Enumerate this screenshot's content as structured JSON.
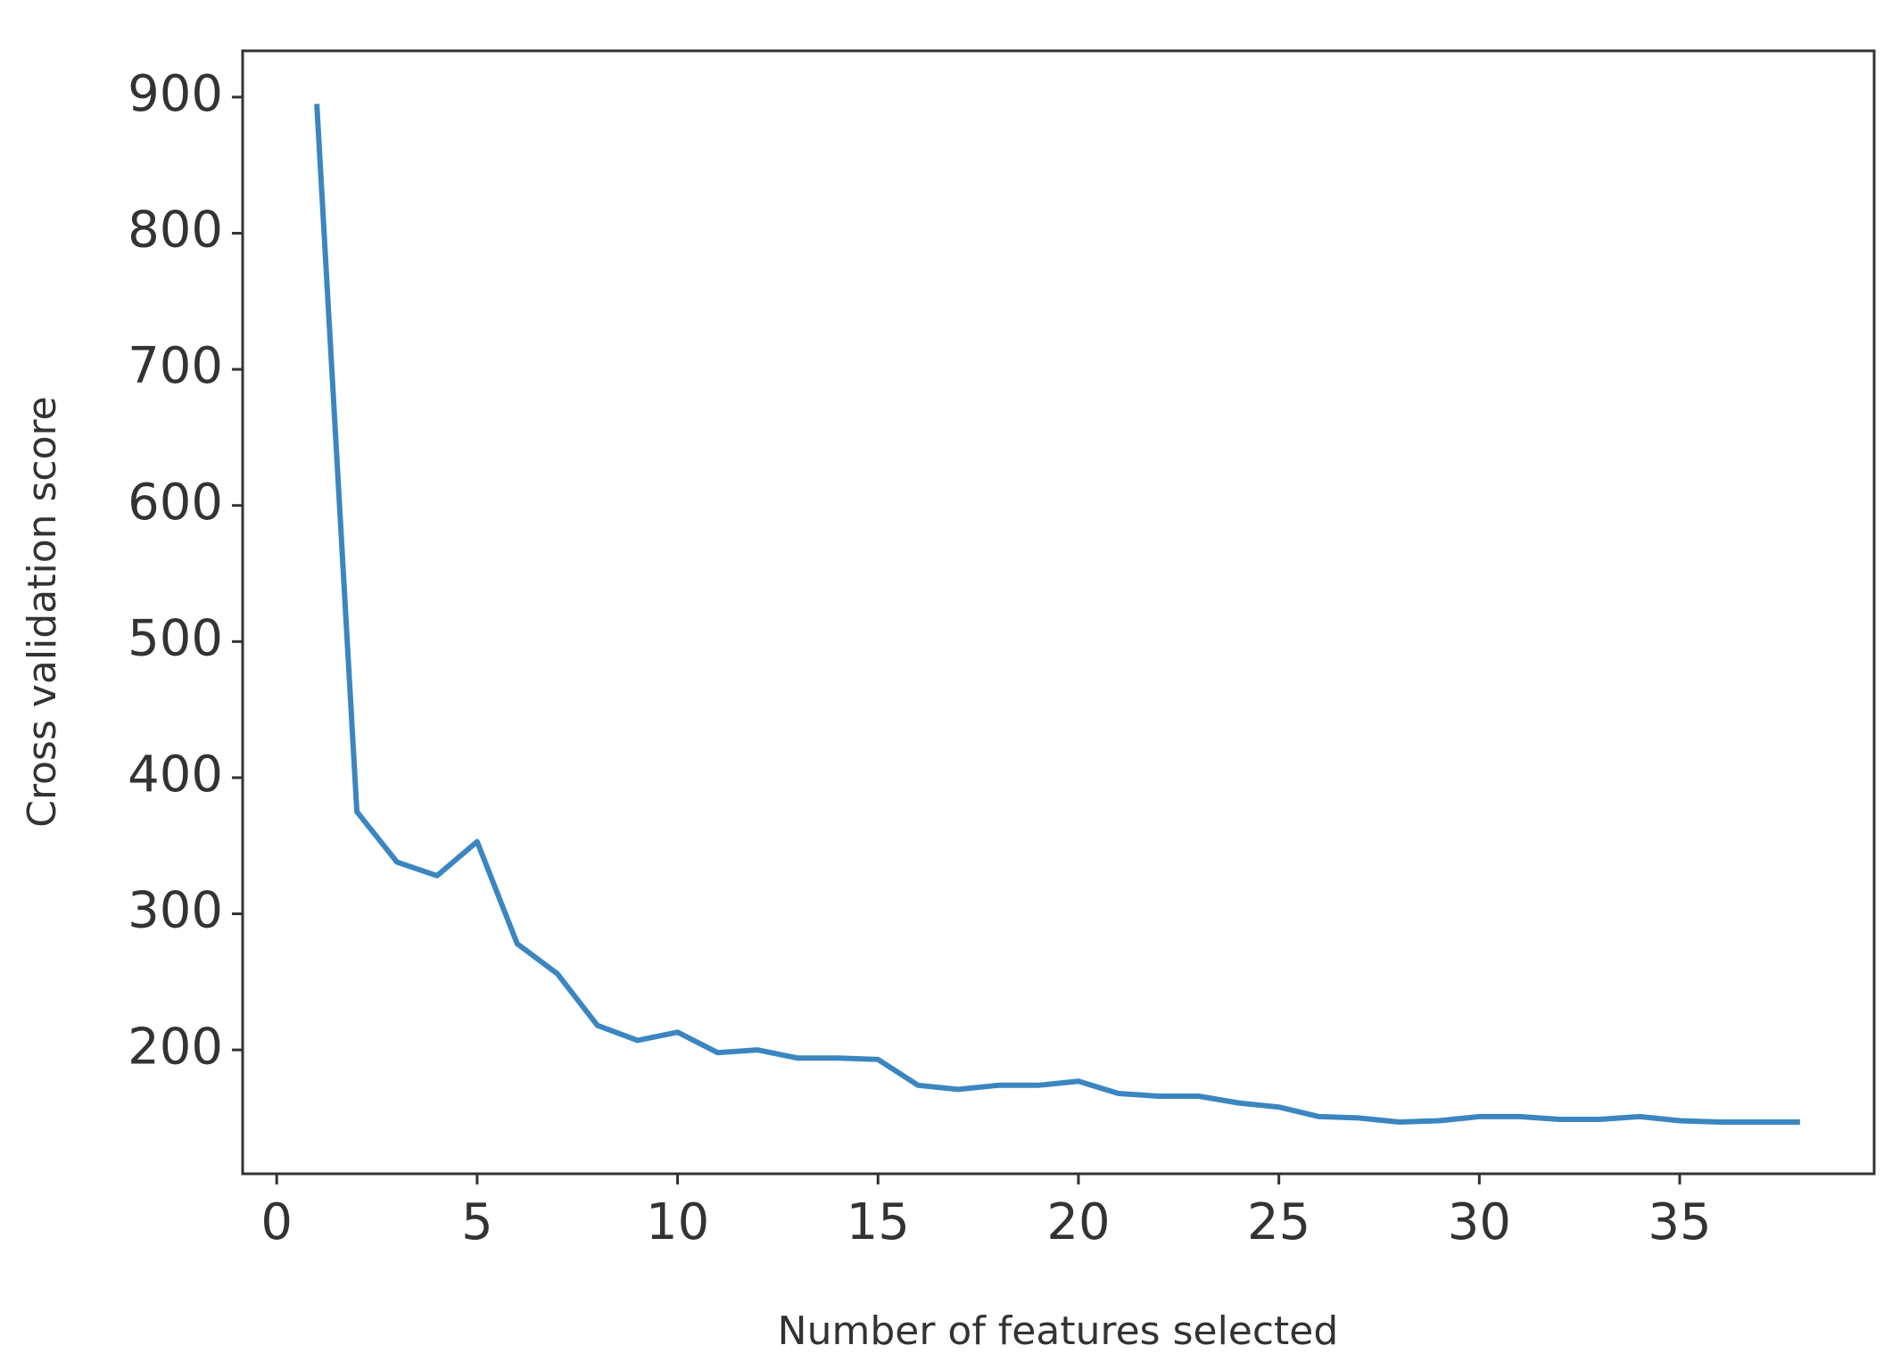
{
  "chart_data": {
    "type": "line",
    "xlabel": "Number of features selected",
    "ylabel": "Cross validation score",
    "x": [
      1,
      2,
      3,
      4,
      5,
      6,
      7,
      8,
      9,
      10,
      11,
      12,
      13,
      14,
      15,
      16,
      17,
      18,
      19,
      20,
      21,
      22,
      23,
      24,
      25,
      26,
      27,
      28,
      29,
      30,
      31,
      32,
      33,
      34,
      35,
      36,
      37,
      38
    ],
    "series": [
      {
        "color": "#3b86c0",
        "values": [
          895,
          375,
          338,
          328,
          353,
          278,
          256,
          218,
          207,
          213,
          198,
          200,
          194,
          194,
          193,
          174,
          171,
          174,
          174,
          177,
          168,
          166,
          166,
          161,
          158,
          151,
          150,
          147,
          148,
          151,
          151,
          149,
          149,
          151,
          148,
          147,
          147,
          147
        ]
      }
    ],
    "xlim": [
      -0.85,
      39.85
    ],
    "xticks": [
      0,
      5,
      10,
      15,
      20,
      25,
      30,
      35
    ],
    "ylim": [
      109,
      934
    ],
    "yticks": [
      200,
      300,
      400,
      500,
      600,
      700,
      800,
      900
    ]
  }
}
